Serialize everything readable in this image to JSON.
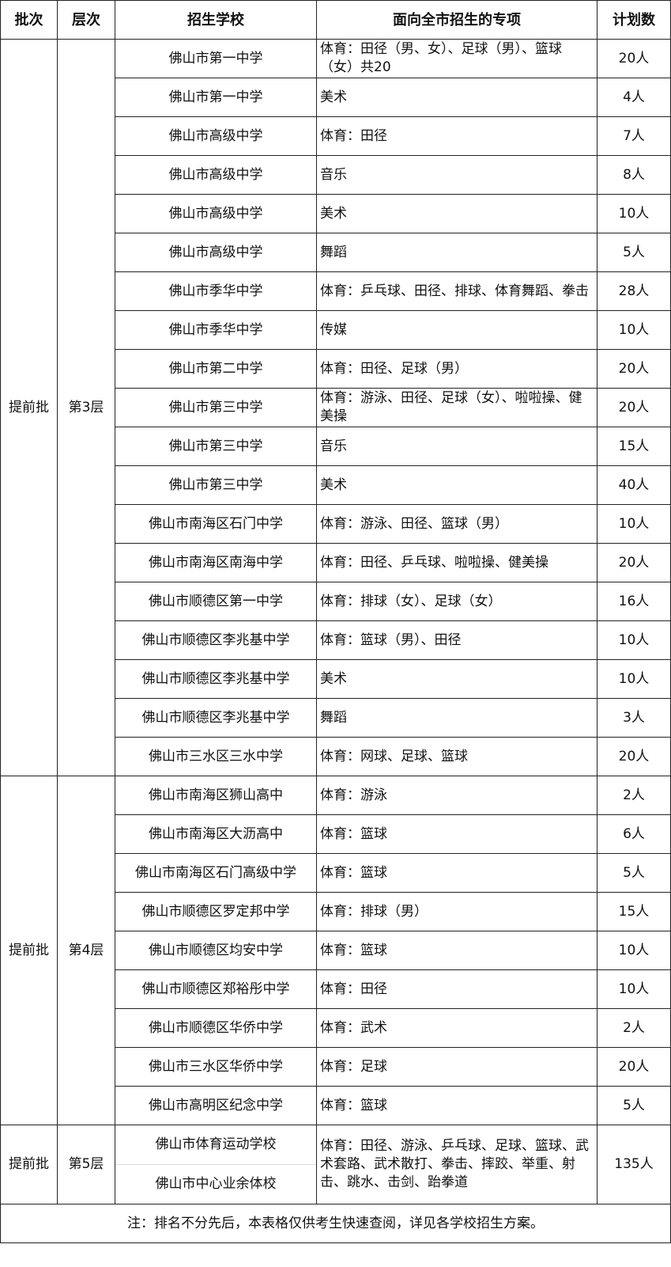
{
  "headers": [
    "批次",
    "层次",
    "招生学校",
    "面向全市招生的专项",
    "计划数"
  ],
  "groups": [
    {
      "batch": "提前批",
      "tier": "第3层",
      "rows": [
        {
          "school": "佛山市第一中学",
          "spec": "体育：田径（男、女）、足球（男）、篮球（女）共20",
          "count": "20人"
        },
        {
          "school": "佛山市第一中学",
          "spec": "美术",
          "count": "4人"
        },
        {
          "school": "佛山市高级中学",
          "spec": "体育：田径",
          "count": "7人"
        },
        {
          "school": "佛山市高级中学",
          "spec": "音乐",
          "count": "8人"
        },
        {
          "school": "佛山市高级中学",
          "spec": "美术",
          "count": "10人"
        },
        {
          "school": "佛山市高级中学",
          "spec": "舞蹈",
          "count": "5人"
        },
        {
          "school": "佛山市季华中学",
          "spec": "体育：乒乓球、田径、排球、体育舞蹈、拳击",
          "count": "28人"
        },
        {
          "school": "佛山市季华中学",
          "spec": "传媒",
          "count": "10人"
        },
        {
          "school": "佛山市第二中学",
          "spec": "体育：田径、足球（男）",
          "count": "20人"
        },
        {
          "school": "佛山市第三中学",
          "spec": "体育：游泳、田径、足球（女）、啦啦操、健美操",
          "count": "20人"
        },
        {
          "school": "佛山市第三中学",
          "spec": "音乐",
          "count": "15人"
        },
        {
          "school": "佛山市第三中学",
          "spec": "美术",
          "count": "40人"
        },
        {
          "school": "佛山市南海区石门中学",
          "spec": "体育：游泳、田径、篮球（男）",
          "count": "10人"
        },
        {
          "school": "佛山市南海区南海中学",
          "spec": "体育：田径、乒乓球、啦啦操、健美操",
          "count": "20人"
        },
        {
          "school": "佛山市顺德区第一中学",
          "spec": "体育：排球（女）、足球（女）",
          "count": "16人"
        },
        {
          "school": "佛山市顺德区李兆基中学",
          "spec": "体育：篮球（男）、田径",
          "count": "10人"
        },
        {
          "school": "佛山市顺德区李兆基中学",
          "spec": "美术",
          "count": "10人"
        },
        {
          "school": "佛山市顺德区李兆基中学",
          "spec": "舞蹈",
          "count": "3人"
        },
        {
          "school": "佛山市三水区三水中学",
          "spec": "体育：网球、足球、篮球",
          "count": "20人"
        }
      ]
    },
    {
      "batch": "提前批",
      "tier": "第4层",
      "rows": [
        {
          "school": "佛山市南海区狮山高中",
          "spec": "体育：游泳",
          "count": "2人"
        },
        {
          "school": "佛山市南海区大沥高中",
          "spec": "体育：篮球",
          "count": "6人"
        },
        {
          "school": "佛山市南海区石门高级中学",
          "spec": "体育：篮球",
          "count": "5人"
        },
        {
          "school": "佛山市顺德区罗定邦中学",
          "spec": "体育：排球（男）",
          "count": "15人"
        },
        {
          "school": "佛山市顺德区均安中学",
          "spec": "体育：篮球",
          "count": "10人"
        },
        {
          "school": "佛山市顺德区郑裕彤中学",
          "spec": "体育：田径",
          "count": "10人"
        },
        {
          "school": "佛山市顺德区华侨中学",
          "spec": "体育：武术",
          "count": "2人"
        },
        {
          "school": "佛山市三水区华侨中学",
          "spec": "体育：足球",
          "count": "20人"
        },
        {
          "school": "佛山市高明区纪念中学",
          "spec": "体育：篮球",
          "count": "5人"
        }
      ]
    }
  ],
  "tier5": {
    "batch": "提前批",
    "tier": "第5层",
    "schools": [
      "佛山市体育运动学校",
      "佛山市中心业余体校"
    ],
    "spec": "体育：田径、游泳、乒乓球、足球、篮球、武术套路、武术散打、拳击、摔跤、举重、射击、跳水、击剑、跆拳道",
    "count": "135人"
  },
  "note": "注：排名不分先后，本表格仅供考生快速查阅，详见各学校招生方案。"
}
